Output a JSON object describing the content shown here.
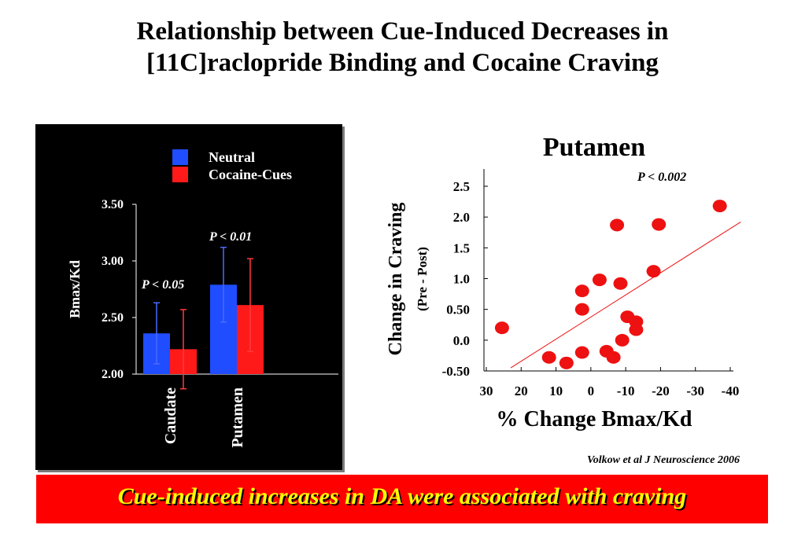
{
  "title": {
    "line1": "Relationship between Cue-Induced Decreases in",
    "line2": "[11C]raclopride Binding and Cocaine Craving"
  },
  "chart_data": [
    {
      "type": "bar",
      "categories": [
        "Caudate",
        "Putamen"
      ],
      "series": [
        {
          "name": "Neutral",
          "values": [
            2.36,
            2.79
          ],
          "error": [
            0.27,
            0.33
          ]
        },
        {
          "name": "Cocaine-Cues",
          "values": [
            2.22,
            2.61
          ],
          "error": [
            0.35,
            0.41
          ]
        }
      ],
      "ylabel": "Bmax/Kd",
      "ylim": [
        2.0,
        3.5
      ],
      "yticks": [
        "2.00",
        "2.50",
        "3.00",
        "3.50"
      ],
      "annotations": [
        "P < 0.05",
        "P < 0.01"
      ],
      "legend": "top-right",
      "colors": {
        "Neutral": "#1f4dff",
        "Cocaine-Cues": "#ff1a1a",
        "background": "#000000"
      }
    },
    {
      "type": "scatter",
      "title": "Putamen",
      "xlabel": "% Change Bmax/Kd",
      "ylabel": "Change in Craving",
      "ylabel_sub": "(Pre - Post)",
      "xlim": [
        30,
        -42
      ],
      "ylim": [
        -0.5,
        2.8
      ],
      "xticks": [
        "30",
        "20",
        "10",
        "0",
        "-10",
        "-20",
        "-30",
        "-40"
      ],
      "xtick_values": [
        30,
        20,
        10,
        0,
        -10,
        -20,
        -30,
        -40
      ],
      "yticks": [
        "-0.50",
        "0.0",
        "0.50",
        "1.0",
        "1.5",
        "2.0",
        "2.5"
      ],
      "ytick_values": [
        -0.5,
        0,
        0.5,
        1.0,
        1.5,
        2.0,
        2.5
      ],
      "annotation": "P < 0.002",
      "points": [
        {
          "x": 25.5,
          "y": 0.2
        },
        {
          "x": 12.0,
          "y": -0.28
        },
        {
          "x": 7.0,
          "y": -0.37
        },
        {
          "x": 2.5,
          "y": -0.2
        },
        {
          "x": 2.5,
          "y": 0.5
        },
        {
          "x": 2.5,
          "y": 0.8
        },
        {
          "x": -2.5,
          "y": 0.98
        },
        {
          "x": -4.5,
          "y": -0.18
        },
        {
          "x": -6.5,
          "y": -0.28
        },
        {
          "x": -7.5,
          "y": 1.87
        },
        {
          "x": -8.5,
          "y": 0.92
        },
        {
          "x": -9.0,
          "y": 0.0
        },
        {
          "x": -10.5,
          "y": 0.38
        },
        {
          "x": -13.0,
          "y": 0.3
        },
        {
          "x": -13.0,
          "y": 0.17
        },
        {
          "x": -18.0,
          "y": 1.12
        },
        {
          "x": -19.5,
          "y": 1.88
        },
        {
          "x": -37.0,
          "y": 2.18
        }
      ],
      "trend_line": {
        "x": [
          23.0,
          -43.0
        ],
        "y": [
          -0.45,
          1.92
        ]
      },
      "colors": {
        "points": "#ee1111",
        "trend": "#ee1111"
      }
    }
  ],
  "citation": "Volkow et al J Neuroscience 2006",
  "banner": "Cue-induced increases in DA were associated with craving"
}
